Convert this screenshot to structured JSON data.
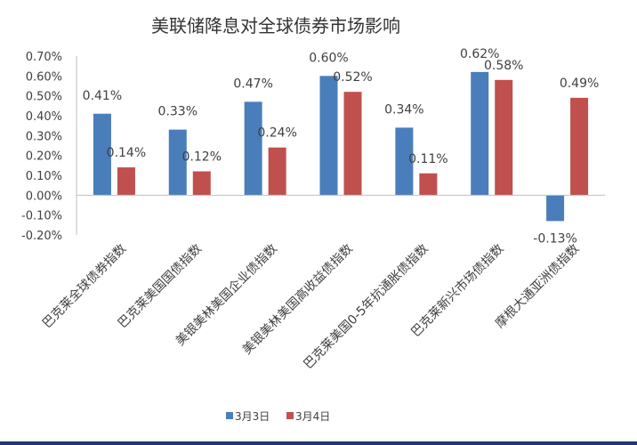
{
  "chart_data": {
    "type": "bar",
    "title": "美联储降息对全球债券市场影响",
    "categories": [
      "巴克莱全球债券指数",
      "巴克莱美国国债指数",
      "美银美林美国企业债指数",
      "美银美林美国高收益债指数",
      "巴克莱美国0-5年抗通胀债指数",
      "巴克莱新兴市场债指数",
      "摩根大通亚洲债指数"
    ],
    "series": [
      {
        "name": "3月3日",
        "color": "#4a7ebb",
        "values": [
          0.41,
          0.33,
          0.47,
          0.6,
          0.34,
          0.62,
          -0.13
        ],
        "labels": [
          "0.41%",
          "0.33%",
          "0.47%",
          "0.60%",
          "0.34%",
          "0.62%",
          "-0.13%"
        ]
      },
      {
        "name": "3月4日",
        "color": "#c0504d",
        "values": [
          0.14,
          0.12,
          0.24,
          0.52,
          0.11,
          0.58,
          0.49
        ],
        "labels": [
          "0.14%",
          "0.12%",
          "0.24%",
          "0.52%",
          "0.11%",
          "0.58%",
          "0.49%"
        ]
      }
    ],
    "ylim": [
      -0.2,
      0.7
    ],
    "ytick_labels": [
      "0.70%",
      "0.60%",
      "0.50%",
      "0.40%",
      "0.30%",
      "0.20%",
      "0.10%",
      "0.00%",
      "-0.10%",
      "-0.20%"
    ],
    "ytick_values": [
      0.7,
      0.6,
      0.5,
      0.4,
      0.3,
      0.2,
      0.1,
      0.0,
      -0.1,
      -0.2
    ],
    "unit": "%",
    "grid": false,
    "legend_position": "bottom"
  }
}
